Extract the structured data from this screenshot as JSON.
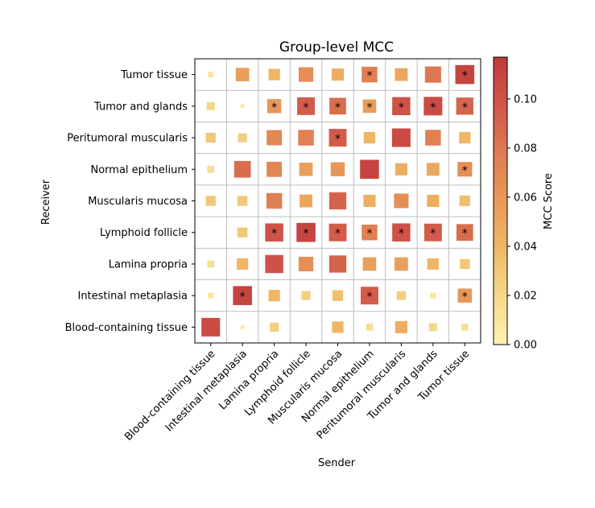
{
  "chart_data": {
    "type": "heatmap",
    "title": "Group-level MCC",
    "xlabel": "Sender",
    "ylabel": "Receiver",
    "x_categories": [
      "Blood-containing tissue",
      "Intestinal metaplasia",
      "Lamina propria",
      "Lymphoid follicle",
      "Muscularis mucosa",
      "Normal epithelium",
      "Peritumoral muscularis",
      "Tumor and glands",
      "Tumor tissue"
    ],
    "y_categories": [
      "Tumor tissue",
      "Tumor and glands",
      "Peritumoral muscularis",
      "Normal epithelium",
      "Muscularis mucosa",
      "Lymphoid follicle",
      "Lamina propria",
      "Intestinal metaplasia",
      "Blood-containing tissue"
    ],
    "values": [
      [
        0.01,
        0.055,
        0.04,
        0.065,
        0.045,
        0.075,
        0.05,
        0.08,
        0.11
      ],
      [
        0.02,
        0.005,
        0.06,
        0.095,
        0.085,
        0.055,
        0.1,
        0.105,
        0.09
      ],
      [
        0.03,
        0.025,
        0.07,
        0.075,
        0.095,
        0.04,
        0.105,
        0.075,
        0.04
      ],
      [
        0.015,
        0.085,
        0.07,
        0.055,
        0.06,
        0.11,
        0.045,
        0.05,
        0.065
      ],
      [
        0.03,
        0.03,
        0.075,
        0.05,
        0.09,
        0.045,
        0.065,
        0.045,
        0.035
      ],
      [
        null,
        0.03,
        0.1,
        0.11,
        0.095,
        0.075,
        0.1,
        0.095,
        0.085
      ],
      [
        0.015,
        0.04,
        0.1,
        0.065,
        0.09,
        0.055,
        0.055,
        0.04,
        0.03
      ],
      [
        0.01,
        0.11,
        0.04,
        0.025,
        0.035,
        0.095,
        0.025,
        0.01,
        0.06
      ],
      [
        0.105,
        0.005,
        0.025,
        null,
        0.04,
        0.015,
        0.045,
        0.02,
        0.015
      ]
    ],
    "significant": [
      [
        false,
        false,
        false,
        false,
        false,
        true,
        false,
        false,
        true
      ],
      [
        false,
        false,
        true,
        true,
        true,
        true,
        true,
        true,
        true
      ],
      [
        false,
        false,
        false,
        false,
        true,
        false,
        false,
        false,
        false
      ],
      [
        false,
        false,
        false,
        false,
        false,
        false,
        false,
        false,
        true
      ],
      [
        false,
        false,
        false,
        false,
        false,
        false,
        false,
        false,
        false
      ],
      [
        false,
        false,
        true,
        true,
        true,
        true,
        true,
        true,
        true
      ],
      [
        false,
        false,
        false,
        false,
        false,
        false,
        false,
        false,
        false
      ],
      [
        false,
        true,
        false,
        false,
        false,
        true,
        false,
        false,
        true
      ],
      [
        false,
        false,
        false,
        false,
        false,
        false,
        false,
        false,
        false
      ]
    ],
    "significance_marker": "*",
    "colorbar": {
      "label": "MCC Score",
      "range": [
        0,
        0.117
      ],
      "ticks": [
        "0.00",
        "0.02",
        "0.04",
        "0.06",
        "0.08",
        "0.10"
      ],
      "tick_values": [
        0,
        0.02,
        0.04,
        0.06,
        0.08,
        0.1
      ],
      "colormap": [
        "#fff3b1",
        "#f5d88c",
        "#efb866",
        "#e8995a",
        "#de7b52",
        "#d0564a",
        "#c13a3a"
      ]
    },
    "grid": true
  }
}
